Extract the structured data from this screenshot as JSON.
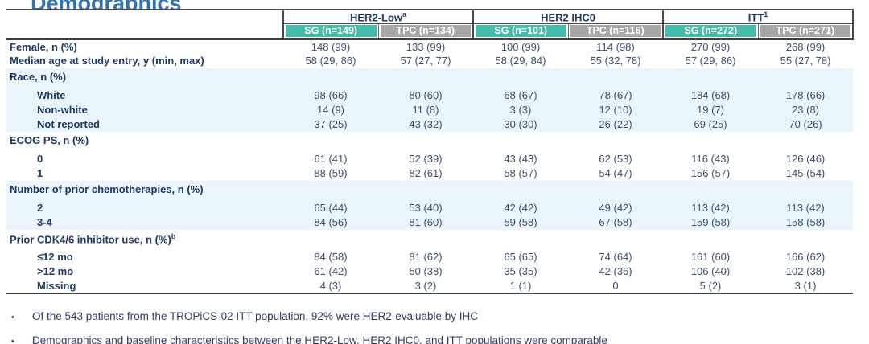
{
  "title_fragment": "Demographics",
  "colors": {
    "accent_teal": "#45BCAC",
    "header_gray": "#A7A7A7",
    "navy_text": "#1F3864",
    "value_text": "#3D4E6E",
    "band_tint": "#EAF4FB",
    "border_dark": "#4A4A4A",
    "title_blue": "#2E74B5",
    "note_text": "#2F3C64"
  },
  "table": {
    "groups": [
      {
        "label": "HER2-Low",
        "sup": "a"
      },
      {
        "label": "HER2 IHC0",
        "sup": ""
      },
      {
        "label": "ITT",
        "sup": "1"
      }
    ],
    "subcolumns": [
      {
        "label": "SG (n=149)",
        "variant": "sg"
      },
      {
        "label": "TPC (n=134)",
        "variant": "tpc"
      },
      {
        "label": "SG (n=101)",
        "variant": "sg"
      },
      {
        "label": "TPC (n=116)",
        "variant": "tpc"
      },
      {
        "label": "SG (n=272)",
        "variant": "sg"
      },
      {
        "label": "TPC (n=271)",
        "variant": "tpc"
      }
    ],
    "rows": [
      {
        "label": "Female, n (%)",
        "sup": "",
        "indent": false,
        "section": false,
        "tint": false,
        "values": [
          "148 (99)",
          "133 (99)",
          "100 (99)",
          "114 (98)",
          "270 (99)",
          "268 (99)"
        ]
      },
      {
        "label": "Median age at study entry, y (min, max)",
        "sup": "",
        "indent": false,
        "section": false,
        "tint": false,
        "values": [
          "58 (29, 86)",
          "57 (27, 77)",
          "58 (29, 84)",
          "55 (32, 78)",
          "57 (29, 86)",
          "55 (27, 78)"
        ]
      },
      {
        "label": "Race, n (%)",
        "sup": "",
        "indent": false,
        "section": true,
        "tint": true,
        "values": [
          "",
          "",
          "",
          "",
          "",
          ""
        ]
      },
      {
        "label": "White",
        "sup": "",
        "indent": true,
        "section": false,
        "tint": true,
        "values": [
          "98 (66)",
          "80 (60)",
          "68 (67)",
          "78 (67)",
          "184 (68)",
          "178 (66)"
        ]
      },
      {
        "label": "Non-white",
        "sup": "",
        "indent": true,
        "section": false,
        "tint": true,
        "values": [
          "14 (9)",
          "11 (8)",
          "3 (3)",
          "12 (10)",
          "19 (7)",
          "23 (8)"
        ]
      },
      {
        "label": "Not reported",
        "sup": "",
        "indent": true,
        "section": false,
        "tint": true,
        "values": [
          "37 (25)",
          "43 (32)",
          "30 (30)",
          "26 (22)",
          "69 (25)",
          "70 (26)"
        ]
      },
      {
        "label": "ECOG PS, n (%)",
        "sup": "",
        "indent": false,
        "section": true,
        "tint": false,
        "values": [
          "",
          "",
          "",
          "",
          "",
          ""
        ]
      },
      {
        "label": "0",
        "sup": "",
        "indent": true,
        "section": false,
        "tint": false,
        "values": [
          "61 (41)",
          "52 (39)",
          "43 (43)",
          "62 (53)",
          "116 (43)",
          "126 (46)"
        ]
      },
      {
        "label": "1",
        "sup": "",
        "indent": true,
        "section": false,
        "tint": false,
        "values": [
          "88 (59)",
          "82 (61)",
          "58 (57)",
          "54 (47)",
          "156 (57)",
          "145 (54)"
        ]
      },
      {
        "label": "Number of prior chemotherapies, n (%)",
        "sup": "",
        "indent": false,
        "section": true,
        "tint": true,
        "values": [
          "",
          "",
          "",
          "",
          "",
          ""
        ]
      },
      {
        "label": "2",
        "sup": "",
        "indent": true,
        "section": false,
        "tint": true,
        "values": [
          "65 (44)",
          "53 (40)",
          "42 (42)",
          "49 (42)",
          "113 (42)",
          "113 (42)"
        ]
      },
      {
        "label": "3-4",
        "sup": "",
        "indent": true,
        "section": false,
        "tint": true,
        "values": [
          "84 (56)",
          "81 (60)",
          "59 (58)",
          "67 (58)",
          "159 (58)",
          "158 (58)"
        ]
      },
      {
        "label": "Prior CDK4/6 inhibitor use, n (%)",
        "sup": "b",
        "indent": false,
        "section": true,
        "tint": false,
        "values": [
          "",
          "",
          "",
          "",
          "",
          ""
        ]
      },
      {
        "label": "≤12 mo",
        "sup": "",
        "indent": true,
        "section": false,
        "tint": false,
        "values": [
          "84 (58)",
          "81 (62)",
          "65 (65)",
          "74 (64)",
          "161 (60)",
          "166 (62)"
        ]
      },
      {
        "label": ">12 mo",
        "sup": "",
        "indent": true,
        "section": false,
        "tint": false,
        "values": [
          "61 (42)",
          "50 (38)",
          "35 (35)",
          "42 (36)",
          "106 (40)",
          "102 (38)"
        ]
      },
      {
        "label": "Missing",
        "sup": "",
        "indent": true,
        "section": false,
        "tint": false,
        "values": [
          "4 (3)",
          "3 (2)",
          "1 (1)",
          "0",
          "5 (2)",
          "3 (1)"
        ]
      }
    ]
  },
  "notes": {
    "bullet_char": "•",
    "items": [
      {
        "text": "Of the 543 patients from the TROPiCS-02 ITT population, 92% were HER2-evaluable by IHC"
      },
      {
        "text": "Demographics and baseline characteristics between the HER2-Low, HER2 IHC0, and ITT populations were comparable"
      }
    ]
  }
}
